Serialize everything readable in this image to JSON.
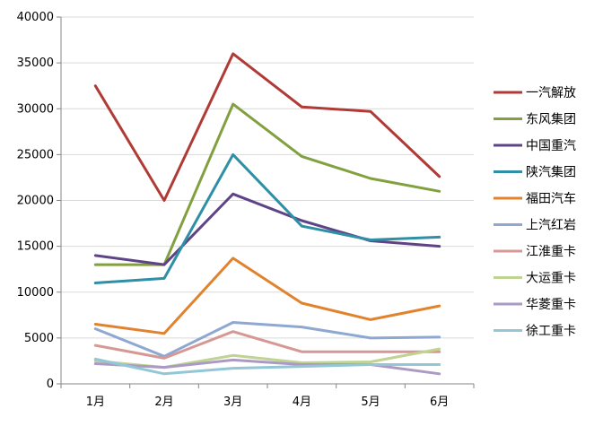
{
  "chart_data": {
    "type": "line",
    "title": "",
    "xlabel": "",
    "ylabel": "",
    "categories": [
      "1月",
      "2月",
      "3月",
      "4月",
      "5月",
      "6月"
    ],
    "ylim": [
      0,
      40000
    ],
    "yticks": [
      0,
      5000,
      10000,
      15000,
      20000,
      25000,
      30000,
      35000,
      40000
    ],
    "grid": "horizontal",
    "legend_position": "right",
    "series": [
      {
        "name": "一汽解放",
        "color": "#B03A36",
        "values": [
          32500,
          20000,
          36000,
          30200,
          29700,
          22600
        ]
      },
      {
        "name": "东风集团",
        "color": "#82A03F",
        "values": [
          13000,
          13000,
          30500,
          24800,
          22400,
          21000
        ]
      },
      {
        "name": "中国重汽",
        "color": "#5E4486",
        "values": [
          14000,
          13000,
          20700,
          17800,
          15600,
          15000
        ]
      },
      {
        "name": "陕汽集团",
        "color": "#2F8FA6",
        "values": [
          11000,
          11500,
          25000,
          17200,
          15700,
          16000
        ]
      },
      {
        "name": "福田汽车",
        "color": "#E1822D",
        "values": [
          6500,
          5500,
          13700,
          8800,
          7000,
          8500
        ]
      },
      {
        "name": "上汽红岩",
        "color": "#8EA8D1",
        "values": [
          6000,
          3000,
          6700,
          6200,
          5000,
          5100
        ]
      },
      {
        "name": "江淮重卡",
        "color": "#D69894",
        "values": [
          4200,
          2800,
          5700,
          3500,
          3500,
          3500
        ]
      },
      {
        "name": "大运重卡",
        "color": "#BFD392",
        "values": [
          2500,
          1800,
          3100,
          2300,
          2400,
          3800
        ]
      },
      {
        "name": "华菱重卡",
        "color": "#AA9AC4",
        "values": [
          2200,
          1800,
          2600,
          2100,
          2100,
          1100
        ]
      },
      {
        "name": "徐工重卡",
        "color": "#93C7D6",
        "values": [
          2700,
          1100,
          1700,
          1900,
          2100,
          2100
        ]
      }
    ]
  }
}
